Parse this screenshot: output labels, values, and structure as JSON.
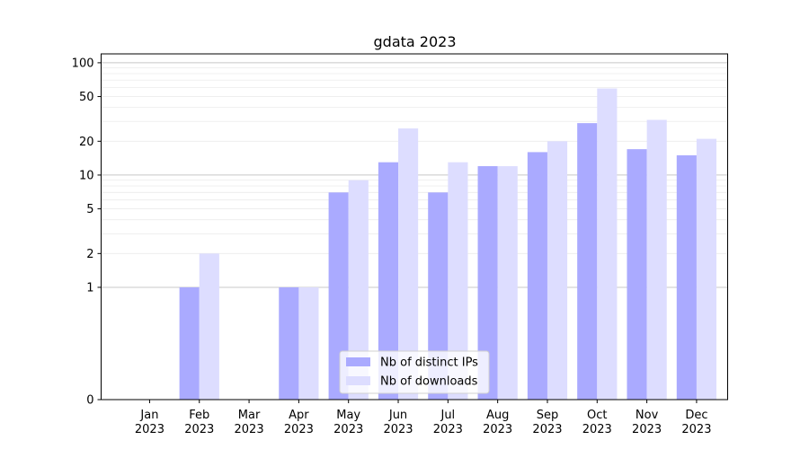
{
  "chart_data": {
    "type": "bar",
    "title": "gdata 2023",
    "xlabel": "",
    "ylabel": "",
    "categories": [
      {
        "month": "Jan",
        "year": "2023"
      },
      {
        "month": "Feb",
        "year": "2023"
      },
      {
        "month": "Mar",
        "year": "2023"
      },
      {
        "month": "Apr",
        "year": "2023"
      },
      {
        "month": "May",
        "year": "2023"
      },
      {
        "month": "Jun",
        "year": "2023"
      },
      {
        "month": "Jul",
        "year": "2023"
      },
      {
        "month": "Aug",
        "year": "2023"
      },
      {
        "month": "Sep",
        "year": "2023"
      },
      {
        "month": "Oct",
        "year": "2023"
      },
      {
        "month": "Nov",
        "year": "2023"
      },
      {
        "month": "Dec",
        "year": "2023"
      }
    ],
    "series": [
      {
        "name": "Nb of distinct IPs",
        "color": "#aaaaff",
        "values": [
          0,
          1,
          0,
          1,
          7,
          13,
          7,
          12,
          16,
          29,
          17,
          15
        ]
      },
      {
        "name": "Nb of downloads",
        "color": "#ddddff",
        "values": [
          0,
          2,
          0,
          1,
          9,
          26,
          13,
          12,
          20,
          59,
          31,
          21
        ]
      }
    ],
    "y_scale": "symlog",
    "ylim": [
      0,
      120
    ],
    "y_ticks": [
      {
        "value": 0,
        "label": "0"
      },
      {
        "value": 1,
        "label": "1"
      },
      {
        "value": 2,
        "label": "2"
      },
      {
        "value": 5,
        "label": "5"
      },
      {
        "value": 10,
        "label": "10"
      },
      {
        "value": 20,
        "label": "20"
      },
      {
        "value": 50,
        "label": "50"
      },
      {
        "value": 100,
        "label": "100"
      }
    ],
    "grid": true,
    "legend_position": "bottom-center"
  }
}
